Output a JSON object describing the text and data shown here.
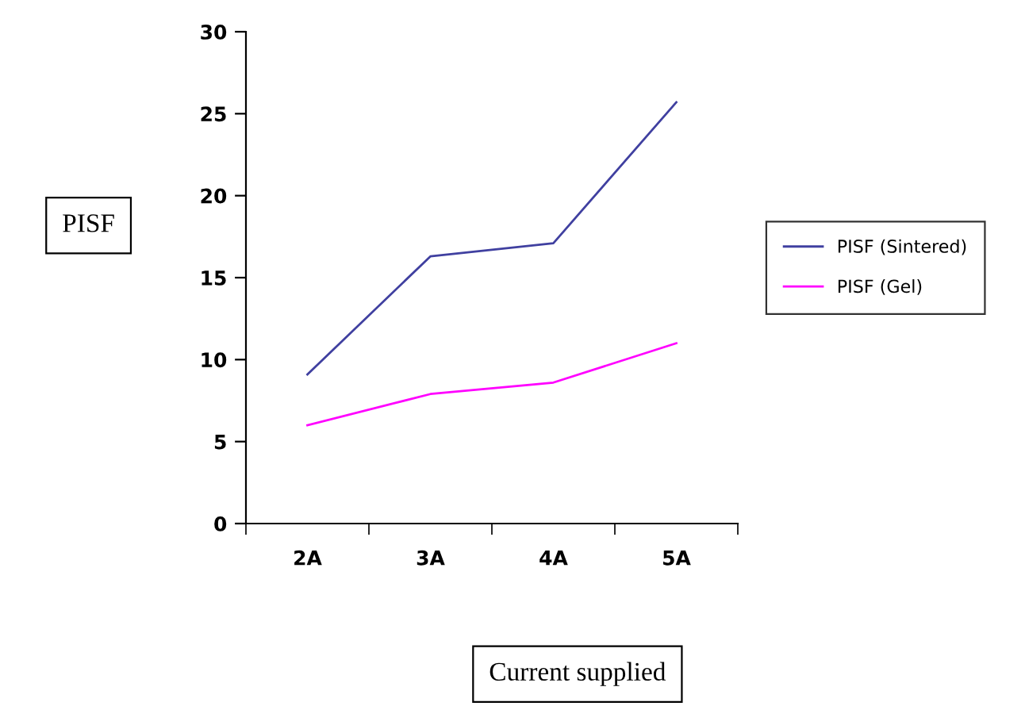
{
  "chart_data": {
    "type": "line",
    "xlabel": "Current supplied",
    "ylabel": "PISF",
    "categories": [
      "2A",
      "3A",
      "4A",
      "5A"
    ],
    "series": [
      {
        "name": "PISF (Sintered)",
        "color": "#4040a0",
        "values": [
          9.1,
          16.3,
          17.1,
          25.7
        ]
      },
      {
        "name": "PISF (Gel)",
        "color": "#ff00ff",
        "values": [
          6.0,
          7.9,
          8.6,
          11.0
        ]
      }
    ],
    "ylim": [
      0,
      30
    ],
    "yticks": [
      0,
      5,
      10,
      15,
      20,
      25,
      30
    ],
    "grid": false,
    "legend": "right",
    "marker": "none",
    "line_style": "solid"
  }
}
